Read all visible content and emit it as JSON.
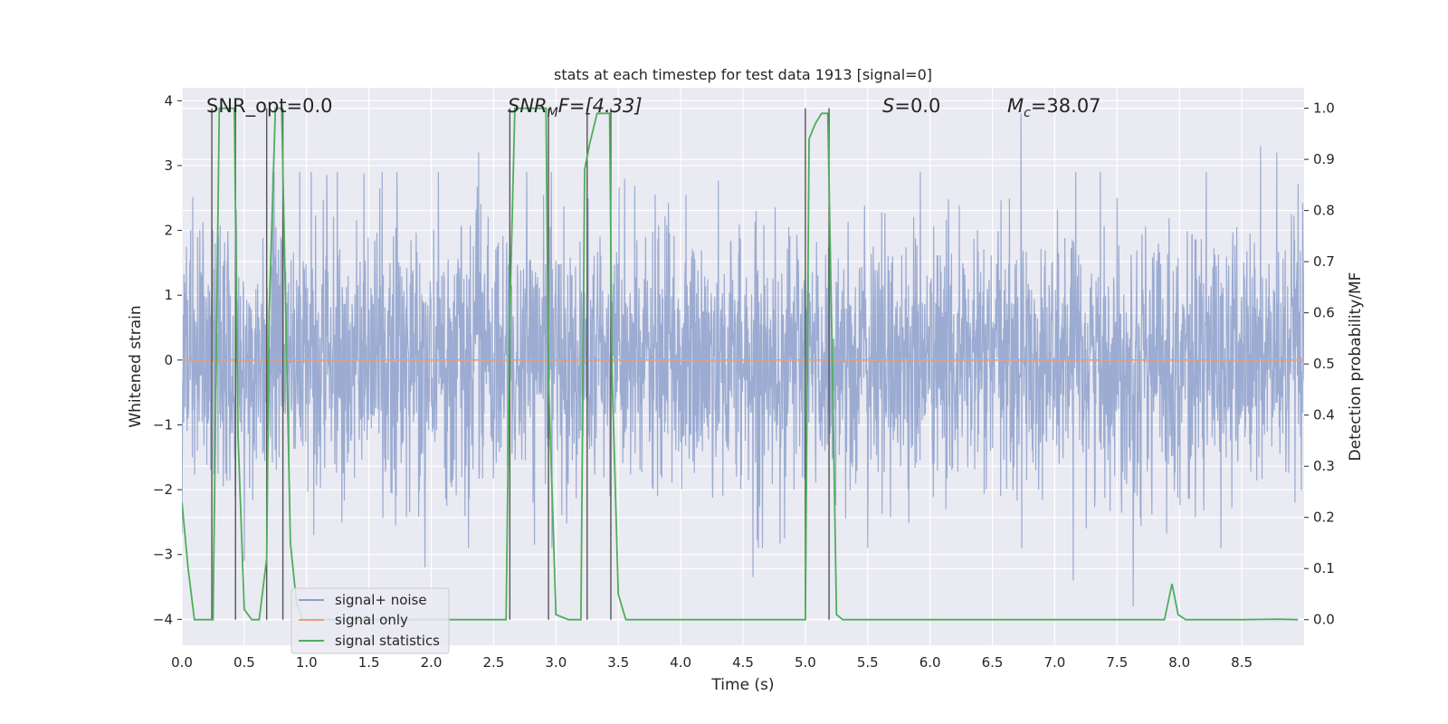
{
  "chart_data": {
    "type": "line",
    "title": "stats at each timestep for test data 1913 [signal=0]",
    "xlabel": "Time (s)",
    "ylabel": "Whitened strain",
    "y2label": "Detection probability/MF",
    "xlim": [
      0.0,
      9.0
    ],
    "ylim": [
      -4.4,
      4.2
    ],
    "y2lim": [
      -0.05,
      1.04
    ],
    "xticks": [
      0.0,
      0.5,
      1.0,
      1.5,
      2.0,
      2.5,
      3.0,
      3.5,
      4.0,
      4.5,
      5.0,
      5.5,
      6.0,
      6.5,
      7.0,
      7.5,
      8.0,
      8.5
    ],
    "xtick_labels": [
      "0.0",
      "0.5",
      "1.0",
      "1.5",
      "2.0",
      "2.5",
      "3.0",
      "3.5",
      "4.0",
      "4.5",
      "5.0",
      "5.5",
      "6.0",
      "6.5",
      "7.0",
      "7.5",
      "8.0",
      "8.5"
    ],
    "yticks": [
      -4,
      -3,
      -2,
      -1,
      0,
      1,
      2,
      3,
      4
    ],
    "ytick_labels": [
      "−4",
      "−3",
      "−2",
      "−1",
      "0",
      "1",
      "2",
      "3",
      "4"
    ],
    "y2ticks": [
      0.0,
      0.1,
      0.2,
      0.3,
      0.4,
      0.5,
      0.6,
      0.7,
      0.8,
      0.9,
      1.0
    ],
    "y2tick_labels": [
      "0.0",
      "0.1",
      "0.2",
      "0.3",
      "0.4",
      "0.5",
      "0.6",
      "0.7",
      "0.8",
      "0.9",
      "1.0"
    ],
    "grid": true,
    "legend_position": "lower-left",
    "annotations": {
      "snr_opt": "SNR_opt=0.0",
      "snr_mf_base": "SNR",
      "snr_mf_sub": "M",
      "snr_mf_rest": "F=[4.33]",
      "s_base": "S",
      "s_rest": "=0.0",
      "mc_base": "M",
      "mc_sub": "c",
      "mc_rest": "=38.07"
    },
    "series": [
      {
        "name": "signal+ noise",
        "axis": "left",
        "color": "#8da0cb",
        "description_values": "dense noise samples, mostly within [-2.5, 2.5], peaks near 3.8 and -3.8",
        "peak_samples": [
          {
            "x": 2.38,
            "y": 3.2
          },
          {
            "x": 6.73,
            "y": 3.8
          },
          {
            "x": 8.65,
            "y": 3.3
          },
          {
            "x": 8.78,
            "y": 3.2
          },
          {
            "x": 4.58,
            "y": -3.35
          },
          {
            "x": 7.15,
            "y": -3.4
          },
          {
            "x": 7.63,
            "y": -3.8
          },
          {
            "x": 1.95,
            "y": -3.2
          },
          {
            "x": 0.5,
            "y": -3.1
          }
        ]
      },
      {
        "name": "signal only",
        "axis": "left",
        "color": "#e5a07c",
        "x": [
          0.0,
          9.0
        ],
        "y": [
          0.0,
          0.0
        ]
      },
      {
        "name": "signal statistics",
        "axis": "right",
        "color": "#4eae5b",
        "x": [
          0.0,
          0.05,
          0.1,
          0.25,
          0.3,
          0.42,
          0.45,
          0.5,
          0.56,
          0.62,
          0.68,
          0.7,
          0.75,
          0.8,
          0.87,
          0.92,
          0.97,
          2.6,
          2.63,
          2.67,
          2.73,
          2.92,
          2.94,
          3.0,
          3.1,
          3.2,
          3.23,
          3.27,
          3.33,
          3.43,
          3.45,
          3.5,
          3.56,
          4.0,
          5.0,
          5.03,
          5.08,
          5.13,
          5.18,
          5.22,
          5.25,
          5.3,
          7.88,
          7.94,
          7.99,
          8.05,
          8.5,
          8.8,
          8.95
        ],
        "y": [
          0.23,
          0.1,
          0.0,
          0.0,
          1.0,
          1.0,
          0.36,
          0.02,
          0.0,
          0.0,
          0.12,
          0.6,
          1.0,
          1.0,
          0.15,
          0.03,
          0.0,
          0.0,
          0.6,
          1.0,
          1.0,
          1.0,
          0.47,
          0.01,
          0.0,
          0.0,
          0.88,
          0.93,
          0.99,
          0.99,
          0.48,
          0.05,
          0.0,
          0.0,
          0.0,
          0.94,
          0.97,
          0.99,
          0.99,
          0.45,
          0.01,
          0.0,
          0.0,
          0.07,
          0.01,
          0.0,
          0.0,
          0.001,
          0.0
        ]
      }
    ],
    "vertical_markers_x": [
      0.24,
      0.43,
      0.68,
      0.81,
      2.63,
      2.94,
      3.25,
      3.44,
      5.0,
      5.19
    ]
  }
}
